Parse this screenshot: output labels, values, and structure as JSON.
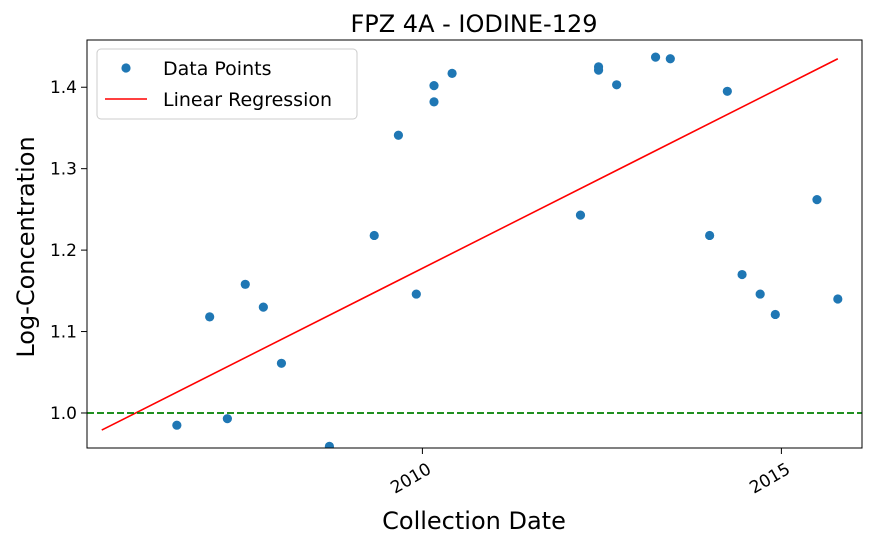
{
  "chart_data": {
    "type": "scatter",
    "title": "FPZ  4A - IODINE-129",
    "xlabel": "Collection Date",
    "ylabel": "Log-Concentration",
    "xlim": [
      "2005-05-01",
      "2016-02-15"
    ],
    "ylim": [
      0.957,
      1.458
    ],
    "x_ticks": [
      {
        "label": "2010",
        "value": "2010-01-01"
      },
      {
        "label": "2015",
        "value": "2015-01-01"
      }
    ],
    "y_ticks": [
      {
        "label": "1.0",
        "value": 1.0
      },
      {
        "label": "1.1",
        "value": 1.1
      },
      {
        "label": "1.2",
        "value": 1.2
      },
      {
        "label": "1.3",
        "value": 1.3
      },
      {
        "label": "1.4",
        "value": 1.4
      }
    ],
    "grid": false,
    "legend": {
      "placement": "top-left",
      "entries": [
        {
          "label": "Data Points",
          "kind": "marker",
          "color": "#1f77b4"
        },
        {
          "label": "Linear Regression",
          "kind": "line",
          "color": "#ff0000"
        }
      ]
    },
    "series": [
      {
        "name": "Data Points",
        "kind": "scatter",
        "color": "#1f77b4",
        "points": [
          {
            "x": "2006-08-01",
            "y": 0.985
          },
          {
            "x": "2007-01-15",
            "y": 1.118
          },
          {
            "x": "2007-04-15",
            "y": 0.993
          },
          {
            "x": "2007-07-15",
            "y": 1.158
          },
          {
            "x": "2007-10-15",
            "y": 1.13
          },
          {
            "x": "2008-01-15",
            "y": 1.061
          },
          {
            "x": "2008-09-15",
            "y": 0.959
          },
          {
            "x": "2009-05-01",
            "y": 1.218
          },
          {
            "x": "2009-09-01",
            "y": 1.341
          },
          {
            "x": "2009-12-01",
            "y": 1.146
          },
          {
            "x": "2010-03-01",
            "y": 1.382
          },
          {
            "x": "2010-03-01",
            "y": 1.402
          },
          {
            "x": "2010-06-01",
            "y": 1.417
          },
          {
            "x": "2012-03-15",
            "y": 1.243
          },
          {
            "x": "2012-06-15",
            "y": 1.425
          },
          {
            "x": "2012-06-15",
            "y": 1.421
          },
          {
            "x": "2012-09-15",
            "y": 1.403
          },
          {
            "x": "2013-04-01",
            "y": 1.437
          },
          {
            "x": "2013-06-15",
            "y": 1.435
          },
          {
            "x": "2014-01-01",
            "y": 1.218
          },
          {
            "x": "2014-04-01",
            "y": 1.395
          },
          {
            "x": "2014-06-15",
            "y": 1.17
          },
          {
            "x": "2014-09-15",
            "y": 1.146
          },
          {
            "x": "2014-12-01",
            "y": 1.121
          },
          {
            "x": "2015-07-01",
            "y": 1.262
          },
          {
            "x": "2015-10-15",
            "y": 1.14
          }
        ]
      },
      {
        "name": "Linear Regression",
        "kind": "line",
        "color": "#ff0000",
        "points": [
          {
            "x": "2005-07-15",
            "y": 0.979
          },
          {
            "x": "2015-10-15",
            "y": 1.435
          }
        ]
      },
      {
        "kind": "hline",
        "color": "#008000",
        "style": "dashed",
        "y": 1.0
      }
    ]
  }
}
